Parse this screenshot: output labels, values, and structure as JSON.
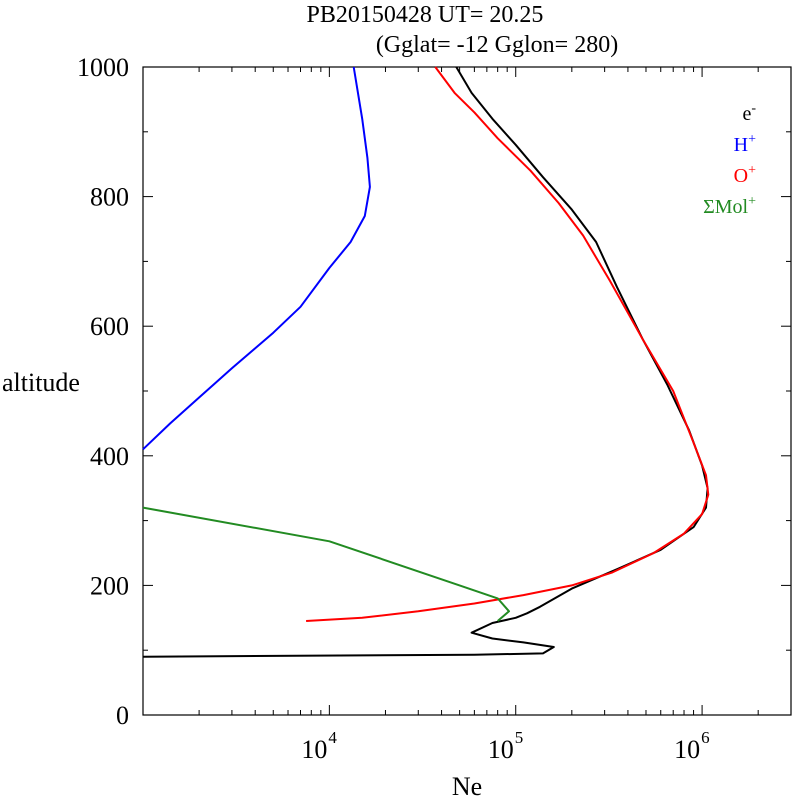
{
  "chart_data": {
    "type": "line",
    "title_line1": "PB20150428   UT=  20.25",
    "title_line2": "(Gglat= -12   Gglon=  280)",
    "xlabel": "Ne",
    "ylabel": "altitude",
    "x_scale": "log",
    "xlim": [
      1000,
      3000000
    ],
    "ylim": [
      0,
      1000
    ],
    "x_ticks": [
      {
        "base": "10",
        "exp": "4",
        "value": 10000
      },
      {
        "base": "10",
        "exp": "5",
        "value": 100000
      },
      {
        "base": "10",
        "exp": "6",
        "value": 1000000
      }
    ],
    "y_ticks": [
      "0",
      "200",
      "400",
      "600",
      "800",
      "1000"
    ],
    "grid": false,
    "legend_position": "top-right",
    "series": [
      {
        "name": "e",
        "name_sup": "-",
        "color": "#000000",
        "points": [
          [
            1000,
            90
          ],
          [
            60000,
            93
          ],
          [
            140000,
            95
          ],
          [
            160000,
            105
          ],
          [
            110000,
            112
          ],
          [
            75000,
            118
          ],
          [
            58000,
            127
          ],
          [
            75000,
            142
          ],
          [
            100000,
            150
          ],
          [
            115000,
            157
          ],
          [
            135000,
            167
          ],
          [
            200000,
            195
          ],
          [
            350000,
            225
          ],
          [
            600000,
            255
          ],
          [
            900000,
            290
          ],
          [
            1050000,
            320
          ],
          [
            1070000,
            350
          ],
          [
            1000000,
            385
          ],
          [
            850000,
            440
          ],
          [
            650000,
            510
          ],
          [
            480000,
            580
          ],
          [
            350000,
            660
          ],
          [
            270000,
            730
          ],
          [
            200000,
            780
          ],
          [
            140000,
            830
          ],
          [
            100000,
            880
          ],
          [
            75000,
            920
          ],
          [
            58000,
            960
          ],
          [
            48000,
            1000
          ]
        ]
      },
      {
        "name": "H",
        "name_sup": "+",
        "color": "#0000ff",
        "points": [
          [
            1000,
            410
          ],
          [
            1400,
            450
          ],
          [
            2000,
            490
          ],
          [
            3000,
            535
          ],
          [
            5000,
            590
          ],
          [
            7000,
            630
          ],
          [
            10000,
            690
          ],
          [
            13000,
            730
          ],
          [
            15500,
            770
          ],
          [
            16500,
            815
          ],
          [
            16000,
            860
          ],
          [
            15000,
            920
          ],
          [
            13500,
            1000
          ]
        ]
      },
      {
        "name": "O",
        "name_sup": "+",
        "color": "#ff0000",
        "points": [
          [
            7500,
            145
          ],
          [
            15000,
            150
          ],
          [
            30000,
            160
          ],
          [
            60000,
            172
          ],
          [
            110000,
            185
          ],
          [
            200000,
            200
          ],
          [
            330000,
            220
          ],
          [
            550000,
            250
          ],
          [
            800000,
            280
          ],
          [
            1000000,
            310
          ],
          [
            1080000,
            340
          ],
          [
            1050000,
            370
          ],
          [
            900000,
            420
          ],
          [
            700000,
            500
          ],
          [
            480000,
            580
          ],
          [
            320000,
            670
          ],
          [
            230000,
            740
          ],
          [
            170000,
            790
          ],
          [
            120000,
            840
          ],
          [
            80000,
            890
          ],
          [
            60000,
            930
          ],
          [
            47000,
            960
          ],
          [
            37000,
            1000
          ]
        ]
      },
      {
        "name": "ΣMol",
        "name_sup": "+",
        "color": "#228b22",
        "points": [
          [
            1000,
            320
          ],
          [
            10000,
            268
          ],
          [
            50000,
            200
          ],
          [
            80000,
            180
          ],
          [
            92000,
            160
          ],
          [
            80000,
            145
          ]
        ]
      }
    ]
  }
}
